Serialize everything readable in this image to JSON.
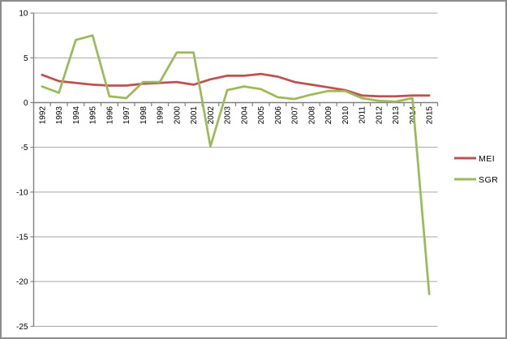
{
  "window": {
    "background": "#FFFFFF",
    "border_color": "#8C8C8C"
  },
  "chart_data": {
    "type": "line",
    "title": "",
    "xlabel": "",
    "ylabel": "",
    "categories": [
      "1992",
      "1993",
      "1994",
      "1995",
      "1996",
      "1997",
      "1998",
      "1999",
      "2000",
      "2001",
      "2002",
      "2003",
      "2004",
      "2005",
      "2006",
      "2007",
      "2008",
      "2009",
      "2010",
      "2011",
      "2012",
      "2013",
      "2014",
      "2015"
    ],
    "series": [
      {
        "name": "MEI",
        "color": "#C0504D",
        "values": [
          3.1,
          2.4,
          2.2,
          2.0,
          1.9,
          1.9,
          2.1,
          2.2,
          2.3,
          2.0,
          2.6,
          3.0,
          3.0,
          3.2,
          2.9,
          2.3,
          2.0,
          1.7,
          1.4,
          0.8,
          0.7,
          0.7,
          0.8,
          0.8
        ]
      },
      {
        "name": "SGR",
        "color": "#9BBB59",
        "values": [
          1.8,
          1.1,
          7.0,
          7.5,
          0.7,
          0.5,
          2.3,
          2.3,
          5.6,
          5.6,
          -4.9,
          1.4,
          1.8,
          1.5,
          0.6,
          0.4,
          0.9,
          1.3,
          1.3,
          0.5,
          0.2,
          0.1,
          0.5,
          -21.4
        ]
      }
    ],
    "ylim": [
      -25,
      10
    ],
    "yticks": [
      10,
      5,
      0,
      -5,
      -10,
      -15,
      -20,
      -25
    ],
    "x_label_rotation_deg": -90,
    "grid": true,
    "legend_position": "right",
    "axis_color": "#808080",
    "gridline_color": "#A6A6A6",
    "label_color": "#000000"
  }
}
